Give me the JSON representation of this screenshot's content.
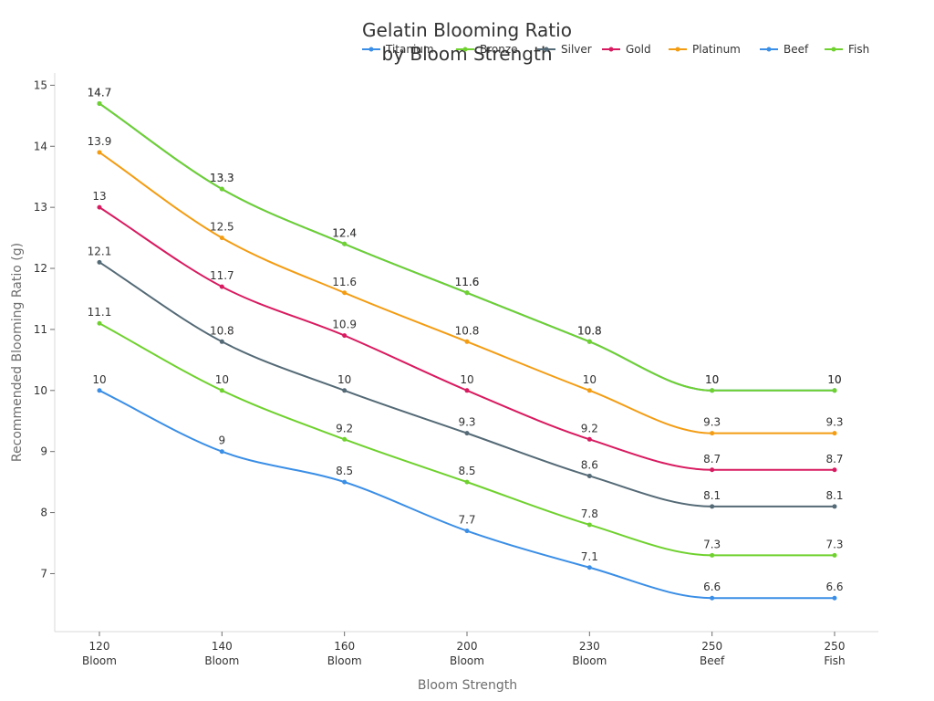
{
  "chart_data": {
    "type": "line",
    "title_lines": [
      "Gelatin Blooming Ratio",
      "by Bloom Strength"
    ],
    "xlabel": "Bloom Strength",
    "ylabel": "Recommended Blooming Ratio (g)",
    "categories": [
      [
        "120",
        "Bloom"
      ],
      [
        "140",
        "Bloom"
      ],
      [
        "160",
        "Bloom"
      ],
      [
        "200",
        "Bloom"
      ],
      [
        "230",
        "Bloom"
      ],
      [
        "250",
        "Beef"
      ],
      [
        "250",
        "Fish"
      ]
    ],
    "yticks": [
      "7",
      "8",
      "9",
      "10",
      "11",
      "12",
      "13",
      "14",
      "15"
    ],
    "ylim": [
      6.05,
      15.2
    ],
    "legend_position": "top",
    "series": [
      {
        "name": "Titanium",
        "color": "#3a8ee6",
        "values": [
          10,
          9,
          8.5,
          7.7,
          7.1,
          6.6,
          6.6
        ]
      },
      {
        "name": "Bronze",
        "color": "#6fd12e",
        "values": [
          11.1,
          10,
          9.2,
          8.5,
          7.8,
          7.3,
          7.3
        ]
      },
      {
        "name": "Silver",
        "color": "#546a76",
        "values": [
          12.1,
          10.8,
          10,
          9.3,
          8.6,
          8.1,
          8.1
        ]
      },
      {
        "name": "Gold",
        "color": "#d81b60",
        "values": [
          13,
          11.7,
          10.9,
          10,
          9.2,
          8.7,
          8.7
        ]
      },
      {
        "name": "Platinum",
        "color": "#f39c12",
        "values": [
          13.9,
          12.5,
          11.6,
          10.8,
          10,
          9.3,
          9.3
        ]
      },
      {
        "name": "Beef",
        "color": "#3a8ee6",
        "values": [
          14.7,
          13.3,
          12.4,
          11.6,
          10.8,
          10,
          10
        ]
      },
      {
        "name": "Fish",
        "color": "#6fd12e",
        "values": [
          14.7,
          13.3,
          12.4,
          11.6,
          10.8,
          10,
          10
        ]
      }
    ]
  }
}
